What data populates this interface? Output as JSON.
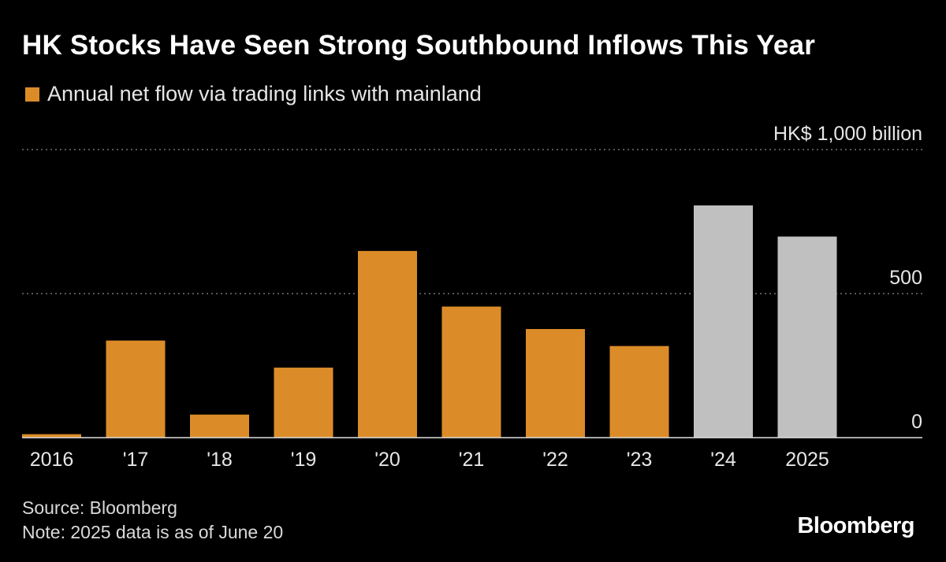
{
  "header": {
    "title": "HK Stocks Have Seen Strong Southbound Inflows This Year"
  },
  "legend": {
    "label": "Annual net flow via trading links with mainland"
  },
  "colors": {
    "orange": "#db8c28",
    "gray": "#c0c0c0",
    "background": "#000000",
    "grid": "#8a8a8a",
    "axis": "#e0e0e0"
  },
  "chart_data": {
    "type": "bar",
    "categories": [
      "2016",
      "'17",
      "'18",
      "'19",
      "'20",
      "'21",
      "'22",
      "'23",
      "'24",
      "2025"
    ],
    "values": [
      12,
      337,
      80,
      243,
      648,
      455,
      377,
      318,
      806,
      698
    ],
    "bar_colors": [
      "orange",
      "orange",
      "orange",
      "orange",
      "orange",
      "orange",
      "orange",
      "orange",
      "gray",
      "gray"
    ],
    "unit_label": "HK$ 1,000 billion",
    "y_ticks": [
      {
        "value": 0,
        "label": "0"
      },
      {
        "value": 500,
        "label": "500"
      },
      {
        "value": 1000,
        "label": "HK$ 1,000 billion"
      }
    ],
    "ylim": [
      0,
      1000
    ],
    "grid": true,
    "grid_style": "dotted",
    "y_axis_side": "right",
    "legend_position": "top-left"
  },
  "footer": {
    "source": "Source: Bloomberg",
    "note": "Note: 2025 data is as of June 20"
  },
  "brand": {
    "name": "Bloomberg"
  }
}
